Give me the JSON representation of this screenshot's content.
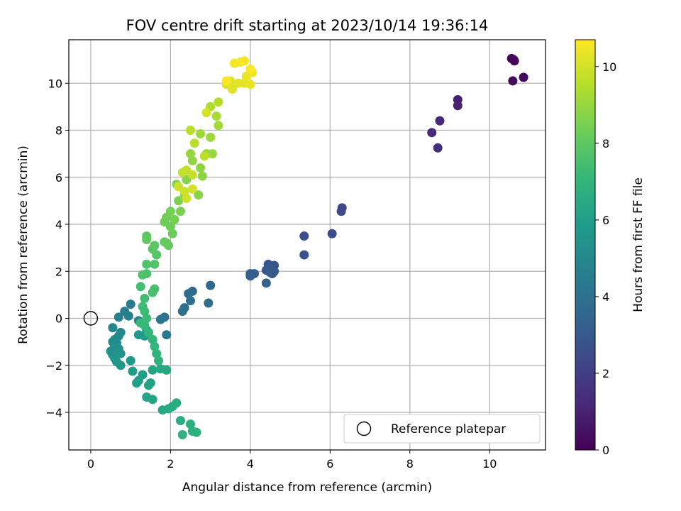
{
  "chart_data": {
    "type": "scatter",
    "title": "FOV centre drift starting at 2023/10/14 19:36:14",
    "xlabel": "Angular distance from reference (arcmin)",
    "ylabel": "Rotation from reference (arcmin)",
    "xlim": [
      -0.55,
      11.4
    ],
    "ylim": [
      -5.6,
      11.85
    ],
    "x_ticks": [
      0,
      2,
      4,
      6,
      8,
      10
    ],
    "y_ticks": [
      -4,
      -2,
      0,
      2,
      4,
      6,
      8,
      10
    ],
    "grid": true,
    "legend": {
      "position": "lower-right",
      "entries": [
        "Reference platepar"
      ]
    },
    "reference_point": {
      "x": 0,
      "y": 0
    },
    "colorbar": {
      "label": "Hours from first FF file",
      "range": [
        0,
        10.7
      ],
      "ticks": [
        0,
        2,
        4,
        6,
        8,
        10
      ],
      "colormap": [
        "#440154",
        "#482878",
        "#3e4989",
        "#31688e",
        "#26828e",
        "#1f9e89",
        "#35b779",
        "#6ece58",
        "#b5de2b",
        "#fde725"
      ]
    },
    "series": [
      {
        "points": [
          [
            10.55,
            11.05,
            0.1
          ],
          [
            10.6,
            11.0,
            0.15
          ],
          [
            10.62,
            10.95,
            0.2
          ],
          [
            10.85,
            10.25,
            0.25
          ],
          [
            10.58,
            10.1,
            0.3
          ],
          [
            9.2,
            9.3,
            0.9
          ],
          [
            9.2,
            9.05,
            1.0
          ],
          [
            8.75,
            8.4,
            1.2
          ],
          [
            8.55,
            7.9,
            1.3
          ],
          [
            8.7,
            7.25,
            1.4
          ],
          [
            6.3,
            4.7,
            2.3
          ],
          [
            6.28,
            4.55,
            2.4
          ],
          [
            6.05,
            3.6,
            2.5
          ],
          [
            5.35,
            3.5,
            2.6
          ],
          [
            5.35,
            2.7,
            2.7
          ],
          [
            4.6,
            2.25,
            2.8
          ],
          [
            4.45,
            2.3,
            2.85
          ],
          [
            4.55,
            2.1,
            2.9
          ],
          [
            4.5,
            1.95,
            2.95
          ],
          [
            4.4,
            2.05,
            3.0
          ],
          [
            4.6,
            2.0,
            3.05
          ],
          [
            4.55,
            1.9,
            3.1
          ],
          [
            4.1,
            1.9,
            3.15
          ],
          [
            4.0,
            1.9,
            3.2
          ],
          [
            4.0,
            1.8,
            3.25
          ],
          [
            4.4,
            1.5,
            3.3
          ],
          [
            3.0,
            1.4,
            3.6
          ],
          [
            2.55,
            1.15,
            3.7
          ],
          [
            2.45,
            1.05,
            3.8
          ],
          [
            2.5,
            0.75,
            3.85
          ],
          [
            2.95,
            0.65,
            3.9
          ],
          [
            2.35,
            0.45,
            3.95
          ],
          [
            2.3,
            0.3,
            4.0
          ],
          [
            1.85,
            0.05,
            4.1
          ],
          [
            1.75,
            -0.05,
            4.2
          ],
          [
            1.9,
            -0.7,
            4.3
          ],
          [
            1.0,
            0.6,
            4.5
          ],
          [
            0.85,
            0.3,
            4.6
          ],
          [
            0.95,
            0.1,
            4.65
          ],
          [
            0.7,
            0.05,
            4.7
          ],
          [
            1.2,
            -0.1,
            4.8
          ],
          [
            0.55,
            -0.4,
            4.9
          ],
          [
            0.75,
            -0.6,
            5.0
          ],
          [
            0.7,
            -0.75,
            5.05
          ],
          [
            0.6,
            -0.9,
            5.1
          ],
          [
            0.55,
            -1.0,
            5.15
          ],
          [
            0.65,
            -1.05,
            5.2
          ],
          [
            0.6,
            -1.2,
            5.25
          ],
          [
            0.7,
            -1.3,
            5.3
          ],
          [
            0.5,
            -1.4,
            5.35
          ],
          [
            0.55,
            -1.55,
            5.4
          ],
          [
            0.65,
            -1.5,
            5.45
          ],
          [
            0.75,
            -1.5,
            5.5
          ],
          [
            0.6,
            -1.7,
            5.55
          ],
          [
            0.65,
            -1.85,
            5.6
          ],
          [
            0.75,
            -2.0,
            5.65
          ],
          [
            1.0,
            -1.8,
            5.7
          ],
          [
            1.2,
            -0.7,
            5.75
          ],
          [
            1.35,
            -0.75,
            5.8
          ],
          [
            1.4,
            -0.5,
            5.85
          ],
          [
            1.05,
            -2.25,
            5.9
          ],
          [
            1.3,
            -2.4,
            5.95
          ],
          [
            1.2,
            -2.65,
            6.0
          ],
          [
            1.15,
            -2.75,
            6.05
          ],
          [
            1.5,
            -2.75,
            6.1
          ],
          [
            1.45,
            -2.85,
            6.15
          ],
          [
            1.4,
            -3.35,
            6.2
          ],
          [
            1.55,
            -3.45,
            6.25
          ],
          [
            1.55,
            -2.2,
            6.3
          ],
          [
            1.75,
            -2.15,
            6.35
          ],
          [
            1.9,
            -2.2,
            6.4
          ],
          [
            1.8,
            -3.9,
            6.45
          ],
          [
            1.95,
            -3.85,
            6.5
          ],
          [
            2.05,
            -3.75,
            6.55
          ],
          [
            2.15,
            -3.6,
            6.6
          ],
          [
            2.25,
            -4.35,
            6.65
          ],
          [
            2.5,
            -4.5,
            6.7
          ],
          [
            2.55,
            -4.8,
            6.75
          ],
          [
            2.65,
            -4.85,
            6.8
          ],
          [
            2.3,
            -4.95,
            6.85
          ],
          [
            1.7,
            -1.8,
            6.9
          ],
          [
            1.65,
            -1.5,
            6.95
          ],
          [
            1.6,
            -1.2,
            7.0
          ],
          [
            1.55,
            -0.9,
            7.05
          ],
          [
            1.45,
            -0.6,
            7.1
          ],
          [
            1.35,
            -0.3,
            7.15
          ],
          [
            1.25,
            -0.2,
            7.2
          ],
          [
            1.4,
            0.0,
            7.25
          ],
          [
            1.35,
            0.3,
            7.3
          ],
          [
            1.3,
            0.5,
            7.35
          ],
          [
            1.35,
            0.85,
            7.4
          ],
          [
            1.25,
            1.35,
            7.45
          ],
          [
            1.55,
            1.1,
            7.5
          ],
          [
            1.6,
            1.25,
            7.55
          ],
          [
            1.4,
            1.9,
            7.6
          ],
          [
            1.3,
            1.85,
            7.65
          ],
          [
            1.4,
            2.3,
            7.7
          ],
          [
            1.6,
            2.3,
            7.75
          ],
          [
            1.65,
            2.7,
            7.8
          ],
          [
            1.55,
            2.95,
            7.85
          ],
          [
            1.6,
            3.1,
            7.9
          ],
          [
            1.4,
            3.5,
            7.95
          ],
          [
            1.4,
            3.35,
            8.0
          ],
          [
            1.85,
            3.25,
            8.05
          ],
          [
            1.95,
            3.1,
            8.1
          ],
          [
            1.9,
            3.2,
            8.15
          ],
          [
            2.05,
            3.6,
            8.2
          ],
          [
            2.0,
            3.9,
            8.25
          ],
          [
            1.85,
            4.1,
            8.3
          ],
          [
            1.9,
            4.3,
            8.35
          ],
          [
            2.0,
            4.55,
            8.4
          ],
          [
            2.1,
            4.2,
            8.45
          ],
          [
            2.25,
            4.55,
            8.5
          ],
          [
            2.2,
            5.0,
            8.55
          ],
          [
            2.35,
            5.2,
            8.6
          ],
          [
            2.15,
            5.7,
            8.65
          ],
          [
            2.4,
            5.9,
            8.7
          ],
          [
            2.7,
            5.25,
            8.75
          ],
          [
            2.8,
            6.05,
            8.8
          ],
          [
            2.75,
            6.4,
            8.85
          ],
          [
            2.55,
            6.7,
            8.9
          ],
          [
            2.5,
            7.0,
            8.95
          ],
          [
            2.9,
            7.0,
            9.0
          ],
          [
            3.05,
            7.0,
            9.05
          ],
          [
            3.0,
            7.7,
            9.1
          ],
          [
            2.75,
            7.85,
            9.15
          ],
          [
            3.2,
            8.2,
            9.2
          ],
          [
            3.15,
            8.6,
            9.3
          ],
          [
            3.0,
            9.0,
            9.4
          ],
          [
            3.2,
            9.2,
            9.5
          ],
          [
            2.5,
            8.0,
            9.55
          ],
          [
            2.6,
            7.45,
            9.6
          ],
          [
            2.85,
            6.9,
            9.65
          ],
          [
            2.4,
            6.3,
            9.7
          ],
          [
            2.3,
            6.2,
            9.75
          ],
          [
            2.55,
            6.1,
            9.8
          ],
          [
            2.2,
            5.6,
            9.85
          ],
          [
            2.35,
            5.4,
            9.9
          ],
          [
            2.4,
            5.1,
            9.95
          ],
          [
            2.55,
            5.5,
            10.0
          ],
          [
            2.9,
            8.75,
            10.05
          ],
          [
            3.4,
            9.95,
            10.1
          ],
          [
            3.5,
            10.1,
            10.15
          ],
          [
            3.55,
            9.75,
            10.2
          ],
          [
            3.7,
            10.0,
            10.25
          ],
          [
            3.85,
            10.0,
            10.3
          ],
          [
            4.0,
            9.95,
            10.35
          ],
          [
            3.9,
            10.3,
            10.4
          ],
          [
            4.05,
            10.45,
            10.45
          ],
          [
            3.75,
            10.9,
            10.5
          ],
          [
            3.6,
            10.85,
            10.55
          ],
          [
            3.85,
            10.95,
            10.6
          ],
          [
            4.0,
            10.6,
            10.65
          ],
          [
            3.4,
            10.1,
            10.7
          ]
        ]
      }
    ]
  }
}
